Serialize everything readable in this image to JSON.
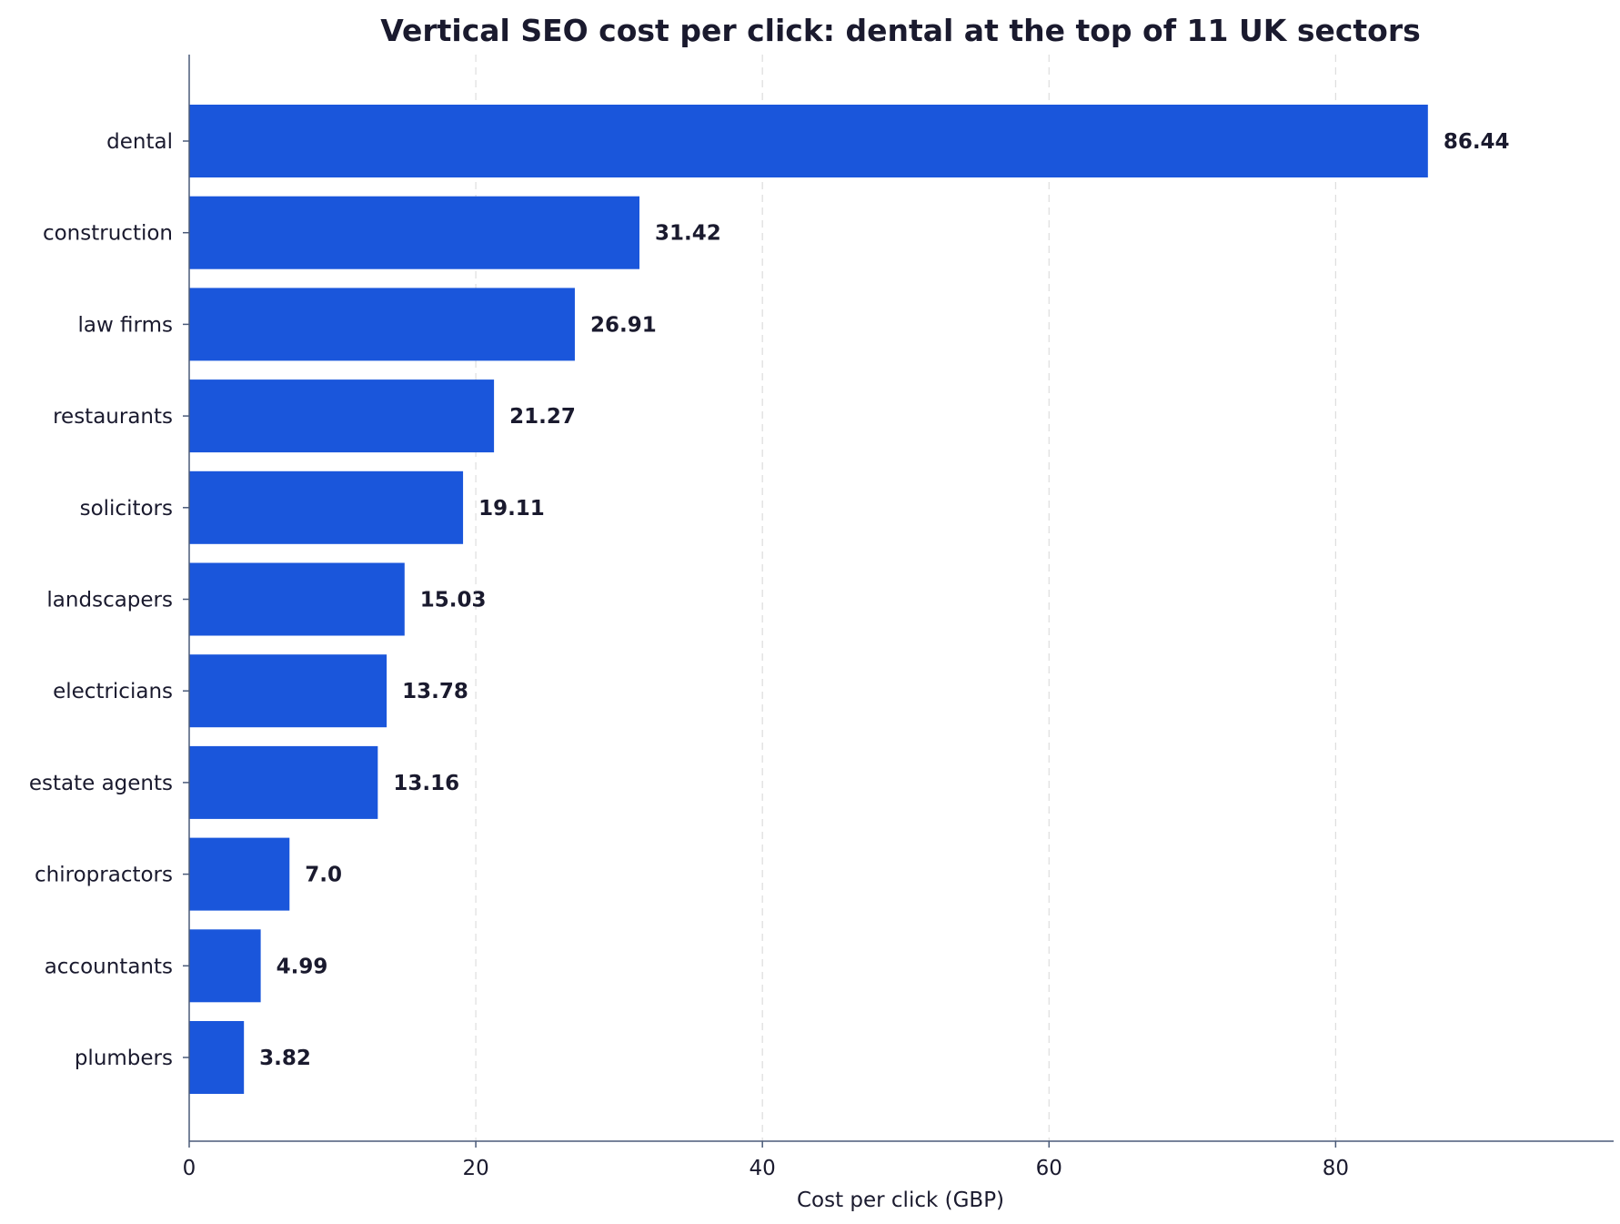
{
  "chart_data": {
    "type": "bar",
    "orientation": "horizontal",
    "title": "Vertical SEO cost per click: dental at the top of 11 UK sectors",
    "xlabel": "Cost per click (GBP)",
    "ylabel": "",
    "categories": [
      "dental",
      "construction",
      "law firms",
      "restaurants",
      "solicitors",
      "landscapers",
      "electricians",
      "estate agents",
      "chiropractors",
      "accountants",
      "plumbers"
    ],
    "values": [
      86.44,
      31.42,
      26.91,
      21.27,
      19.11,
      15.03,
      13.78,
      13.16,
      7.0,
      4.99,
      3.82
    ],
    "value_labels": [
      "86.44",
      "31.42",
      "26.91",
      "21.27",
      "19.11",
      "15.03",
      "13.78",
      "13.16",
      "7.0",
      "4.99",
      "3.82"
    ],
    "xlim": [
      0,
      99.4
    ],
    "xticks": [
      0,
      20,
      40,
      60,
      80
    ],
    "xtick_labels": [
      "0",
      "20",
      "40",
      "60",
      "80"
    ],
    "grid": "vertical dashed",
    "legend": "none",
    "colors": {
      "bar": "#1a56db",
      "text": "#1a1a2e",
      "axis": "#4a5a78",
      "grid": "#dddddd"
    }
  }
}
